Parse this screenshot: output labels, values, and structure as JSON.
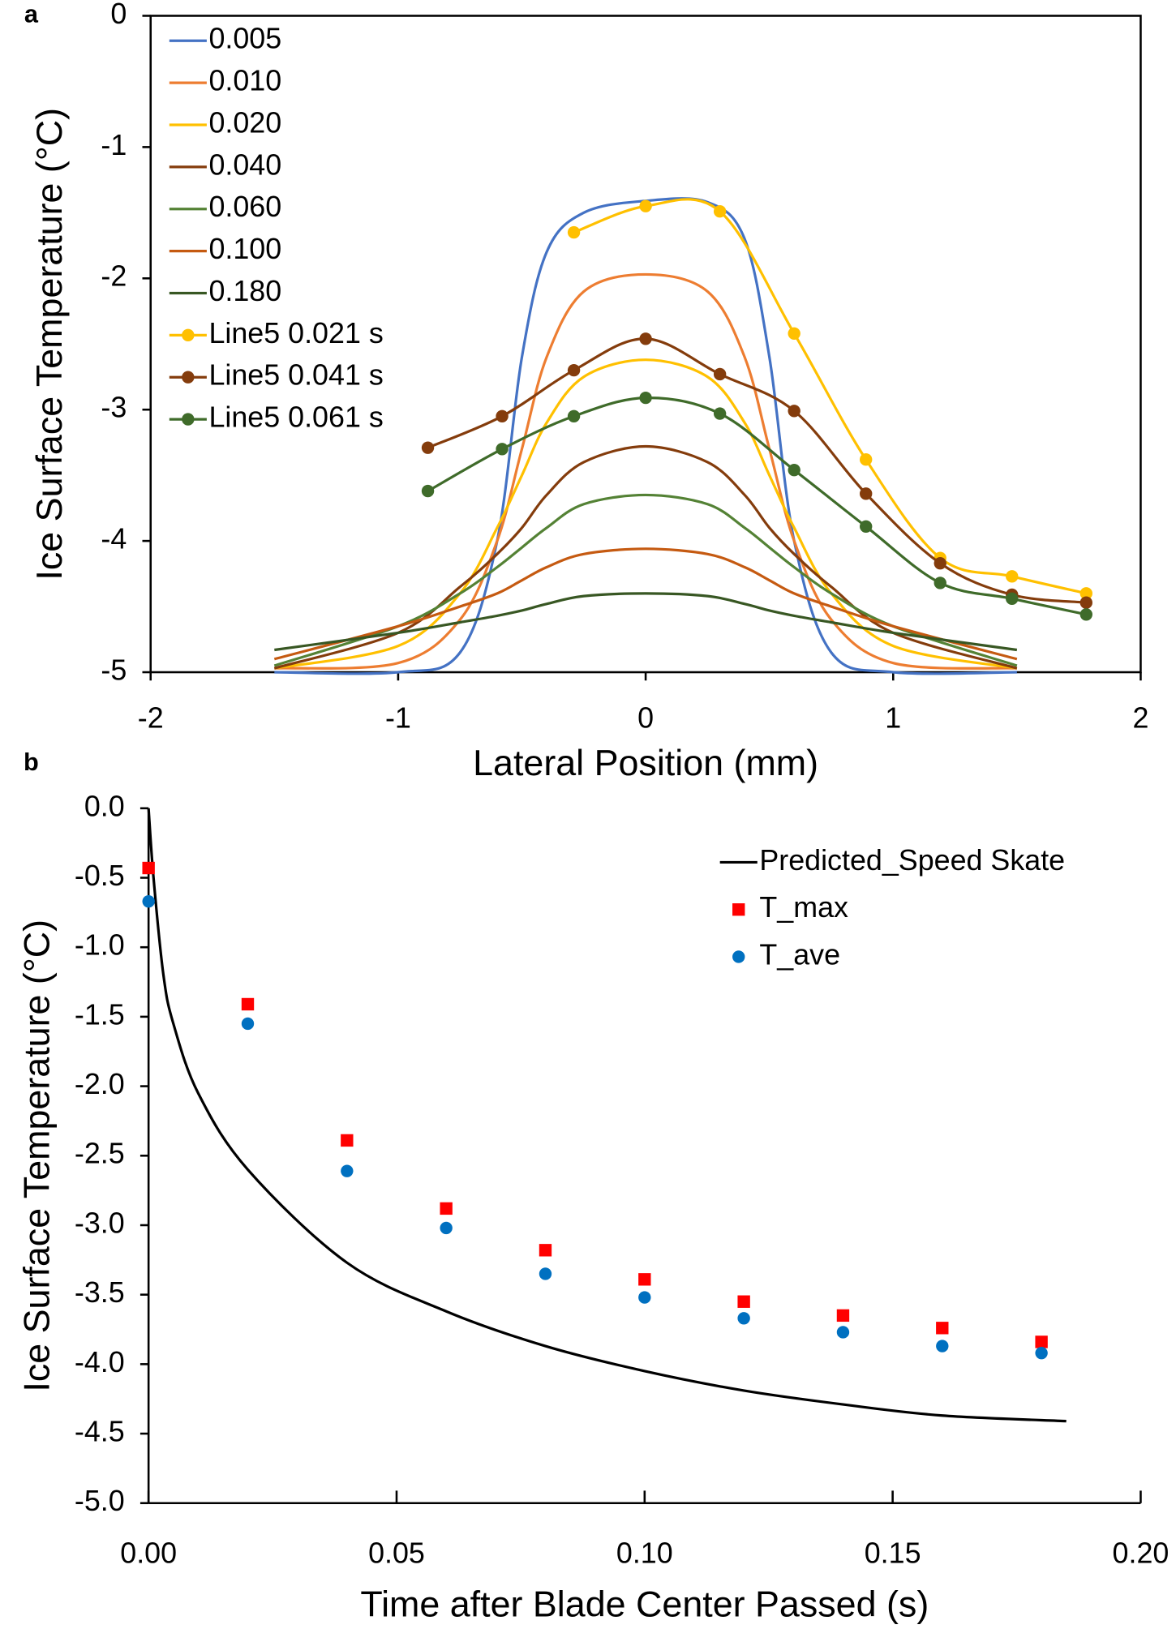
{
  "chart_data": [
    {
      "type": "line",
      "panel": "a",
      "xlabel": "Lateral Position (mm)",
      "ylabel": "Ice Surface Temperature (°C)",
      "xlim": [
        -2,
        2
      ],
      "xticks": [
        -2,
        -1,
        0,
        1,
        2
      ],
      "ylim": [
        -5,
        0
      ],
      "yticks": [
        -5,
        -4,
        -3,
        -2,
        -1,
        0
      ],
      "frame": true,
      "legend": "upper left",
      "series": [
        {
          "name": "0.005",
          "color": "#4472c4",
          "marker": "none",
          "x": [
            -1.5,
            -1.0,
            -0.75,
            -0.6,
            -0.5,
            -0.4,
            -0.25,
            0,
            0.25,
            0.4,
            0.5,
            0.6,
            0.75,
            1.0,
            1.5
          ],
          "values": [
            -5,
            -5,
            -4.85,
            -4.0,
            -2.6,
            -1.8,
            -1.5,
            -1.41,
            -1.42,
            -1.7,
            -2.6,
            -4.0,
            -4.85,
            -5,
            -5
          ]
        },
        {
          "name": "0.010",
          "color": "#ed7d31",
          "marker": "none",
          "x": [
            -1.5,
            -1.0,
            -0.75,
            -0.6,
            -0.5,
            -0.4,
            -0.25,
            0,
            0.25,
            0.4,
            0.5,
            0.6,
            0.75,
            1.0,
            1.5
          ],
          "values": [
            -4.97,
            -4.93,
            -4.6,
            -4.0,
            -3.3,
            -2.6,
            -2.1,
            -1.97,
            -2.1,
            -2.6,
            -3.3,
            -4.0,
            -4.6,
            -4.93,
            -4.97
          ]
        },
        {
          "name": "0.020",
          "color": "#ffc000",
          "marker": "none",
          "x": [
            -1.5,
            -1.0,
            -0.75,
            -0.6,
            -0.5,
            -0.4,
            -0.25,
            0,
            0.25,
            0.4,
            0.5,
            0.6,
            0.75,
            1.0,
            1.5
          ],
          "values": [
            -4.97,
            -4.8,
            -4.4,
            -3.9,
            -3.5,
            -3.1,
            -2.75,
            -2.62,
            -2.75,
            -3.1,
            -3.5,
            -3.9,
            -4.4,
            -4.8,
            -4.97
          ]
        },
        {
          "name": "0.040",
          "color": "#843c0c",
          "marker": "none",
          "x": [
            -1.5,
            -1.0,
            -0.75,
            -0.6,
            -0.5,
            -0.4,
            -0.25,
            0,
            0.25,
            0.4,
            0.5,
            0.6,
            0.75,
            1.0,
            1.5
          ],
          "values": [
            -4.97,
            -4.7,
            -4.35,
            -4.1,
            -3.9,
            -3.65,
            -3.4,
            -3.28,
            -3.4,
            -3.65,
            -3.9,
            -4.1,
            -4.35,
            -4.7,
            -4.97
          ]
        },
        {
          "name": "0.060",
          "color": "#548235",
          "marker": "none",
          "x": [
            -1.5,
            -1.0,
            -0.75,
            -0.6,
            -0.5,
            -0.4,
            -0.25,
            0,
            0.25,
            0.4,
            0.5,
            0.6,
            0.75,
            1.0,
            1.5
          ],
          "values": [
            -4.95,
            -4.65,
            -4.4,
            -4.2,
            -4.05,
            -3.9,
            -3.72,
            -3.65,
            -3.72,
            -3.9,
            -4.05,
            -4.2,
            -4.4,
            -4.65,
            -4.95
          ]
        },
        {
          "name": "0.100",
          "color": "#c55a11",
          "marker": "none",
          "x": [
            -1.5,
            -1.0,
            -0.75,
            -0.6,
            -0.5,
            -0.4,
            -0.25,
            0,
            0.25,
            0.4,
            0.5,
            0.6,
            0.75,
            1.0,
            1.5
          ],
          "values": [
            -4.9,
            -4.65,
            -4.5,
            -4.4,
            -4.3,
            -4.2,
            -4.1,
            -4.06,
            -4.1,
            -4.2,
            -4.3,
            -4.4,
            -4.5,
            -4.65,
            -4.9
          ]
        },
        {
          "name": "0.180",
          "color": "#385723",
          "marker": "none",
          "x": [
            -1.5,
            -1.0,
            -0.75,
            -0.6,
            -0.5,
            -0.4,
            -0.25,
            0,
            0.25,
            0.4,
            0.5,
            0.6,
            0.75,
            1.0,
            1.5
          ],
          "values": [
            -4.83,
            -4.7,
            -4.62,
            -4.57,
            -4.53,
            -4.48,
            -4.42,
            -4.4,
            -4.42,
            -4.48,
            -4.53,
            -4.57,
            -4.62,
            -4.7,
            -4.83
          ]
        },
        {
          "name": "Line5 0.021 s",
          "color": "#ffc000",
          "marker": "circle",
          "x": [
            -0.29,
            0,
            0.3,
            0.6,
            0.89,
            1.19,
            1.48,
            1.78
          ],
          "values": [
            -1.65,
            -1.45,
            -1.49,
            -2.42,
            -3.38,
            -4.13,
            -4.27,
            -4.4
          ]
        },
        {
          "name": "Line5 0.041 s",
          "color": "#843c0c",
          "marker": "circle",
          "x": [
            -0.88,
            -0.58,
            -0.29,
            0,
            0.3,
            0.6,
            0.89,
            1.19,
            1.48,
            1.78
          ],
          "values": [
            -3.29,
            -3.05,
            -2.7,
            -2.46,
            -2.73,
            -3.01,
            -3.64,
            -4.17,
            -4.41,
            -4.47
          ]
        },
        {
          "name": "Line5 0.061 s",
          "color": "#3f6b2a",
          "marker": "circle",
          "x": [
            -0.88,
            -0.58,
            -0.29,
            0,
            0.3,
            0.6,
            0.89,
            1.19,
            1.48,
            1.78
          ],
          "values": [
            -3.62,
            -3.3,
            -3.05,
            -2.91,
            -3.03,
            -3.46,
            -3.89,
            -4.32,
            -4.44,
            -4.56
          ]
        }
      ]
    },
    {
      "type": "line",
      "panel": "b",
      "xlabel": "Time after Blade Center Passed (s)",
      "ylabel": "Ice Surface Temperature (°C)",
      "xlim": [
        0,
        0.2
      ],
      "xticks": [
        {
          "value": 0,
          "label": "0.00"
        },
        0.05,
        {
          "value": 0.1,
          "label": "0.10"
        },
        0.15,
        {
          "value": 0.2,
          "label": "0.20"
        }
      ],
      "ylim": [
        -5,
        0
      ],
      "yticks": [
        {
          "value": 0,
          "label": "0.0"
        },
        -0.5,
        {
          "value": -1,
          "label": "-1.0"
        },
        -1.5,
        {
          "value": -2,
          "label": "-2.0"
        },
        -2.5,
        {
          "value": -3,
          "label": "-3.0"
        },
        -3.5,
        {
          "value": -4,
          "label": "-4.0"
        },
        -4.5,
        {
          "value": -5,
          "label": "-5.0"
        }
      ],
      "frame": false,
      "legend": "upper right",
      "series": [
        {
          "name": "Predicted_Speed Skate",
          "color": "#000000",
          "marker": "none",
          "x": [
            0,
            0.001,
            0.003,
            0.005,
            0.01,
            0.02,
            0.04,
            0.06,
            0.08,
            0.1,
            0.12,
            0.14,
            0.16,
            0.185
          ],
          "values": [
            0,
            -0.5,
            -1.2,
            -1.55,
            -2.05,
            -2.6,
            -3.27,
            -3.62,
            -3.87,
            -4.05,
            -4.19,
            -4.29,
            -4.37,
            -4.41
          ]
        },
        {
          "name": "T_max",
          "color": "#ff0000",
          "marker": "square",
          "line": false,
          "x": [
            0,
            0.02,
            0.04,
            0.06,
            0.08,
            0.1,
            0.12,
            0.14,
            0.16,
            0.18
          ],
          "values": [
            -0.43,
            -1.41,
            -2.39,
            -2.88,
            -3.18,
            -3.39,
            -3.55,
            -3.65,
            -3.74,
            -3.84
          ]
        },
        {
          "name": "T_ave",
          "color": "#0070c0",
          "marker": "circle",
          "line": false,
          "x": [
            0,
            0.02,
            0.04,
            0.06,
            0.08,
            0.1,
            0.12,
            0.14,
            0.16,
            0.18
          ],
          "values": [
            -0.67,
            -1.55,
            -2.61,
            -3.02,
            -3.35,
            -3.52,
            -3.67,
            -3.77,
            -3.87,
            -3.92
          ]
        }
      ]
    }
  ]
}
